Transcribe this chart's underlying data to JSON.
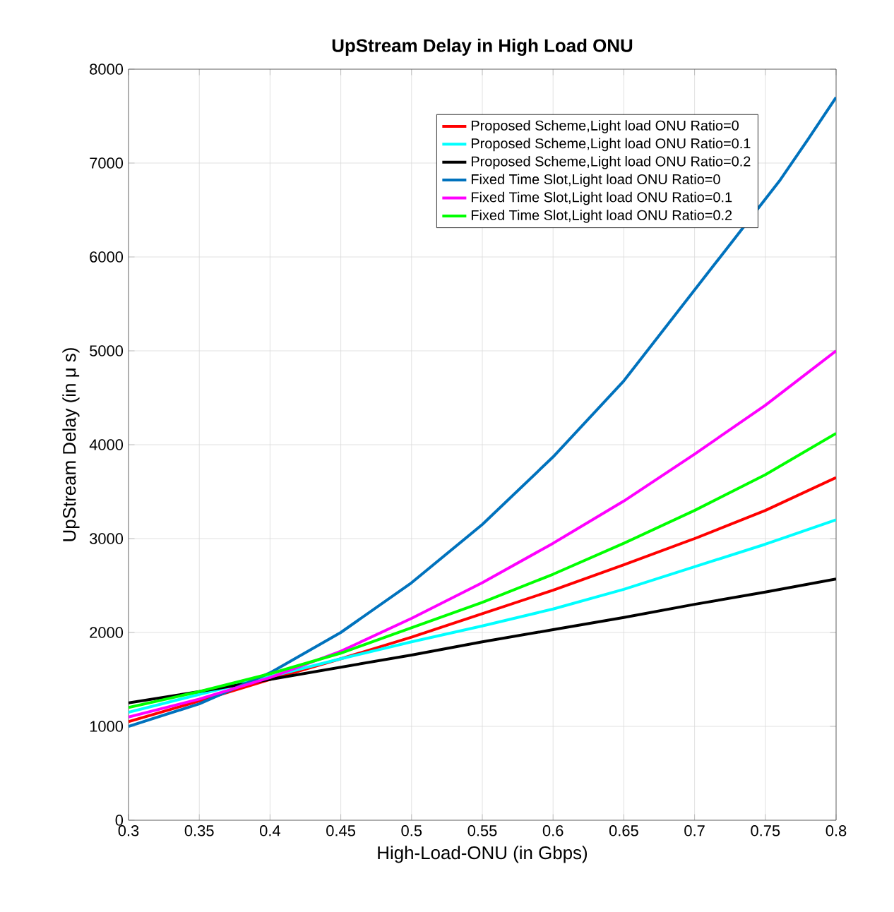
{
  "chart_data": {
    "type": "line",
    "title": "UpStream Delay in High Load ONU",
    "xlabel": "High-Load-ONU (in Gbps)",
    "ylabel": "UpStream Delay (in μ s)",
    "x": [
      0.3,
      0.35,
      0.4,
      0.45,
      0.5,
      0.55,
      0.6,
      0.65,
      0.7,
      0.75,
      0.8
    ],
    "series": [
      {
        "name": "Proposed Scheme,Light load ONU Ratio=0",
        "color": "#ff0000",
        "values": [
          1050,
          1270,
          1500,
          1720,
          1950,
          2200,
          2450,
          2720,
          3000,
          3300,
          3650
        ]
      },
      {
        "name": "Proposed Scheme,Light load ONU Ratio=0.1",
        "color": "#00ffff",
        "values": [
          1150,
          1340,
          1530,
          1720,
          1900,
          2070,
          2250,
          2460,
          2700,
          2940,
          3200
        ]
      },
      {
        "name": "Proposed Scheme,Light load ONU Ratio=0.2",
        "color": "#000000",
        "values": [
          1250,
          1370,
          1500,
          1630,
          1760,
          1900,
          2030,
          2160,
          2300,
          2430,
          2570
        ]
      },
      {
        "name": "Fixed Time Slot,Light load ONU Ratio=0",
        "color": "#0072bd",
        "x": [
          0.3,
          0.35,
          0.4,
          0.45,
          0.5,
          0.55,
          0.6,
          0.65,
          0.76,
          0.78,
          0.8
        ],
        "values": [
          1000,
          1240,
          1570,
          2000,
          2530,
          3150,
          3870,
          4680,
          6810,
          7250,
          7700
        ]
      },
      {
        "name": "Fixed Time Slot,Light load ONU Ratio=0.1",
        "color": "#ff00ff",
        "values": [
          1100,
          1290,
          1520,
          1800,
          2150,
          2530,
          2950,
          3400,
          3900,
          4420,
          5000
        ]
      },
      {
        "name": "Fixed Time Slot,Light load ONU Ratio=0.2",
        "color": "#00ff00",
        "values": [
          1200,
          1370,
          1560,
          1780,
          2050,
          2320,
          2620,
          2950,
          3300,
          3680,
          4120
        ]
      }
    ],
    "xlim": [
      0.3,
      0.8
    ],
    "ylim": [
      0,
      8000
    ],
    "xticks": [
      0.3,
      0.35,
      0.4,
      0.45,
      0.5,
      0.55,
      0.6,
      0.65,
      0.7,
      0.75,
      0.8
    ],
    "yticks": [
      0,
      1000,
      2000,
      3000,
      4000,
      5000,
      6000,
      7000,
      8000
    ],
    "grid": true,
    "legend": "top right",
    "line_style": "solid",
    "marker": "none"
  }
}
